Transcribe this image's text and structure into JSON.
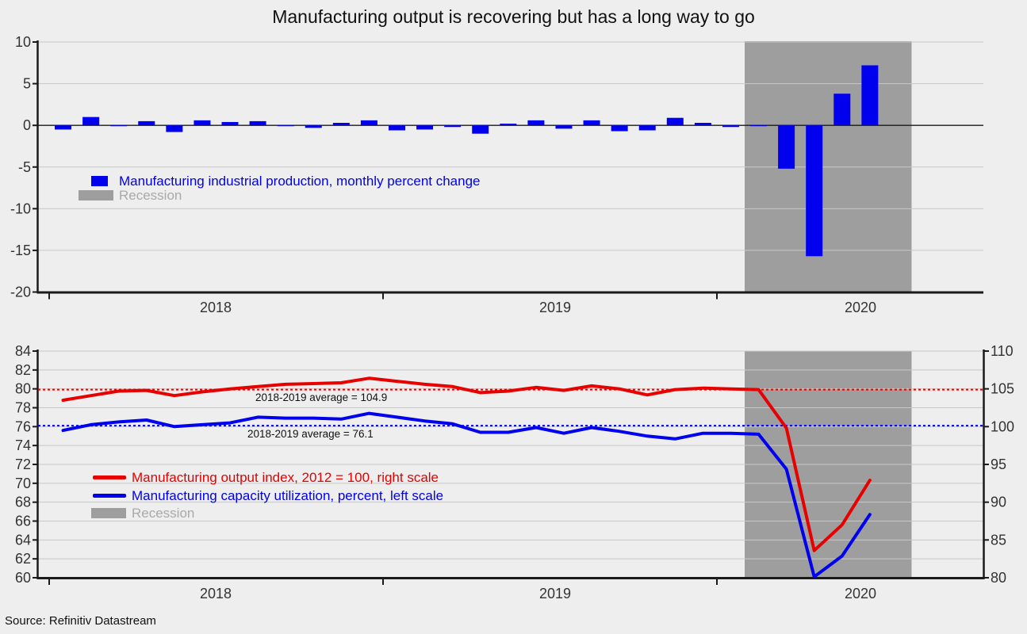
{
  "title": "Manufacturing output is recovering but has a long way to go",
  "source": "Source: Refinitiv Datastream",
  "colors": {
    "series_blue": "#0000ee",
    "series_red": "#e60000",
    "recession_gray": "#9e9e9e",
    "background": "#eeeeee",
    "gridline": "#c8c8c8",
    "axis": "#1a1a1a",
    "tick_text": "#333333",
    "recession_legend_text": "#a9a9a9"
  },
  "chart_data": [
    {
      "type": "bar",
      "name": "manufacturing-industrial-production-monthly-percent-change",
      "legend": {
        "series_label": "Manufacturing industrial production, monthly percent change",
        "recession_label": "Recession"
      },
      "x_year_labels": [
        "2018",
        "2019",
        "2020"
      ],
      "months": [
        "2018-01",
        "2018-02",
        "2018-03",
        "2018-04",
        "2018-05",
        "2018-06",
        "2018-07",
        "2018-08",
        "2018-09",
        "2018-10",
        "2018-11",
        "2018-12",
        "2019-01",
        "2019-02",
        "2019-03",
        "2019-04",
        "2019-05",
        "2019-06",
        "2019-07",
        "2019-08",
        "2019-09",
        "2019-10",
        "2019-11",
        "2019-12",
        "2020-01",
        "2020-02",
        "2020-03",
        "2020-04",
        "2020-05",
        "2020-06"
      ],
      "values": [
        -0.5,
        1.0,
        -0.1,
        0.5,
        -0.8,
        0.6,
        0.4,
        0.5,
        -0.1,
        -0.3,
        0.3,
        0.6,
        -0.6,
        -0.5,
        -0.2,
        -1.0,
        0.2,
        0.6,
        -0.4,
        0.6,
        -0.7,
        -0.6,
        0.9,
        0.3,
        -0.2,
        -0.1,
        -5.2,
        -15.7,
        3.8,
        7.2
      ],
      "ylim": [
        -20,
        10
      ],
      "yticks": [
        10,
        5,
        0,
        -5,
        -10,
        -15,
        -20
      ],
      "recession_span": [
        "2020-02",
        "2020-08"
      ],
      "grid": true,
      "legend_position": "inside-left"
    },
    {
      "type": "line",
      "name": "output-index-and-capacity-utilization",
      "x_year_labels": [
        "2018",
        "2019",
        "2020"
      ],
      "months": [
        "2018-01",
        "2018-02",
        "2018-03",
        "2018-04",
        "2018-05",
        "2018-06",
        "2018-07",
        "2018-08",
        "2018-09",
        "2018-10",
        "2018-11",
        "2018-12",
        "2019-01",
        "2019-02",
        "2019-03",
        "2019-04",
        "2019-05",
        "2019-06",
        "2019-07",
        "2019-08",
        "2019-09",
        "2019-10",
        "2019-11",
        "2019-12",
        "2020-01",
        "2020-02",
        "2020-03",
        "2020-04",
        "2020-05",
        "2020-06"
      ],
      "series": [
        {
          "name": "Manufacturing output index, 2012 = 100, right scale",
          "axis": "right",
          "color": "#e60000",
          "values": [
            103.5,
            104.1,
            104.7,
            104.8,
            104.1,
            104.6,
            105.0,
            105.3,
            105.6,
            105.7,
            105.8,
            106.4,
            106.0,
            105.6,
            105.3,
            104.5,
            104.7,
            105.2,
            104.8,
            105.4,
            105.0,
            104.2,
            104.9,
            105.1,
            105.0,
            104.9,
            99.8,
            83.6,
            87.0,
            92.9
          ]
        },
        {
          "name": "Manufacturing capacity utilization, percent, left scale",
          "axis": "left",
          "color": "#0000ee",
          "values": [
            75.6,
            76.2,
            76.5,
            76.7,
            76.0,
            76.2,
            76.4,
            77.0,
            76.9,
            76.9,
            76.8,
            77.4,
            77.0,
            76.6,
            76.3,
            75.4,
            75.4,
            75.9,
            75.3,
            75.9,
            75.5,
            75.0,
            74.7,
            75.3,
            75.3,
            75.2,
            71.5,
            60.1,
            62.3,
            66.7
          ]
        }
      ],
      "avg_lines": [
        {
          "label": "2018-2019 average = 104.9",
          "axis": "right",
          "value": 104.9,
          "color": "#e60000"
        },
        {
          "label": "2018-2019 average = 76.1",
          "axis": "left",
          "value": 76.1,
          "color": "#0000ee"
        }
      ],
      "legend": {
        "recession_label": "Recession"
      },
      "left_ylim": [
        60,
        84
      ],
      "left_yticks": [
        84,
        82,
        80,
        78,
        76,
        74,
        72,
        70,
        68,
        66,
        64,
        62,
        60
      ],
      "right_ylim": [
        80,
        110
      ],
      "right_yticks": [
        110,
        105,
        100,
        95,
        90,
        85,
        80
      ],
      "recession_span": [
        "2020-02",
        "2020-08"
      ],
      "grid": true
    }
  ]
}
